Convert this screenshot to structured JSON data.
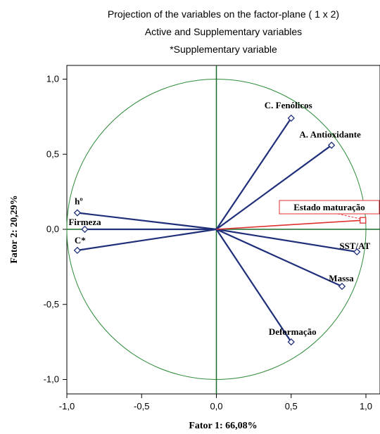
{
  "chart_data": {
    "type": "scatter",
    "title": "Projection of the variables on the factor-plane (  1 x   2)",
    "subtitle": "Active and Supplementary variables",
    "note": "*Supplementary variable",
    "xlabel": "Fator 1: 66,08%",
    "ylabel": "Fator 2: 20,29%",
    "xlim": [
      -1.0,
      1.0
    ],
    "ylim": [
      -1.0,
      1.0
    ],
    "xticks": [
      "-1,0",
      "-0,5",
      "0,0",
      "0,5",
      "1,0"
    ],
    "yticks": [
      "1,0",
      "0,5",
      "0,0",
      "-0,5",
      "-1,0"
    ],
    "circle_radius": 1.0,
    "grid": false,
    "active_variables": [
      {
        "name": "C. Fenólicos",
        "x": 0.5,
        "y": 0.74
      },
      {
        "name": "A. Antioxidante",
        "x": 0.77,
        "y": 0.56
      },
      {
        "name": "hº",
        "x": -0.93,
        "y": 0.11
      },
      {
        "name": "Firmeza",
        "x": -0.88,
        "y": 0.0
      },
      {
        "name": "C*",
        "x": -0.93,
        "y": -0.14
      },
      {
        "name": "SST/AT",
        "x": 0.94,
        "y": -0.15
      },
      {
        "name": "Massa",
        "x": 0.84,
        "y": -0.38
      },
      {
        "name": "Deformação",
        "x": 0.5,
        "y": -0.75
      }
    ],
    "supplementary_variables": [
      {
        "name": "Estado maturação",
        "x": 0.98,
        "y": 0.06
      }
    ],
    "colors": {
      "active": "#1f2f7a",
      "supplementary": "#e03030",
      "circle": "#2e8b3a",
      "axes": "#1a6b2a"
    }
  }
}
